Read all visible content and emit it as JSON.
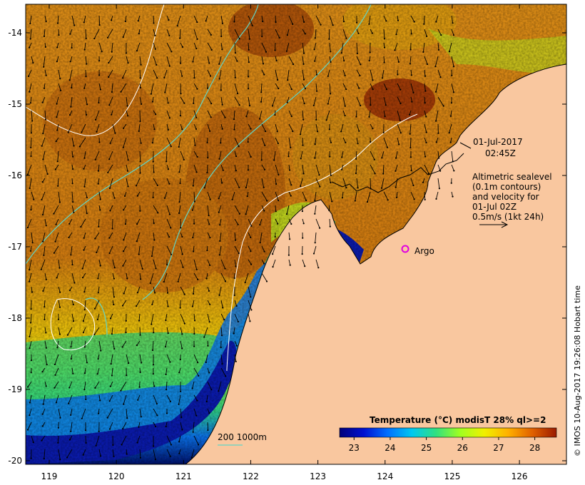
{
  "map": {
    "lon_ticks": [
      "119",
      "120",
      "121",
      "122",
      "123",
      "124",
      "125",
      "126"
    ],
    "lat_ticks": [
      "-14",
      "-15",
      "-16",
      "-17",
      "-18",
      "-19",
      "-20"
    ],
    "lon_range": [
      118.65,
      126.7
    ],
    "lat_range": [
      -20.05,
      -13.6
    ],
    "datetime_date": "01-Jul-2017",
    "datetime_time": "02:45Z",
    "legend_lines": [
      "Altimetric sealevel",
      "(0.1m contours)",
      "and velocity for",
      "01-Jul 02Z",
      "0.5m/s (1kt 24h)"
    ],
    "argo_label": "Argo",
    "argo_lon": 124.3,
    "argo_lat": -17.03,
    "isobath_label": "200  1000m",
    "credit": "© IMOS 10-Aug-2017 19:26:08 Hobart time",
    "colorbar": {
      "title": "Temperature (°C) modisT 28% ql>=2",
      "ticks": [
        "23",
        "24",
        "25",
        "26",
        "27",
        "28"
      ],
      "min": 22.6,
      "max": 28.6,
      "colors": [
        "#00007a",
        "#0010d0",
        "#0070ff",
        "#00c8f0",
        "#30e080",
        "#a0ff20",
        "#f0f000",
        "#ffb000",
        "#e06000",
        "#9a1a00"
      ]
    },
    "colors": {
      "land": "#f9c79f",
      "coastline": "#000000",
      "isobath_200": "#ffffff",
      "isobath_1000": "#5fd6c8",
      "argo": "#e000e0"
    }
  }
}
